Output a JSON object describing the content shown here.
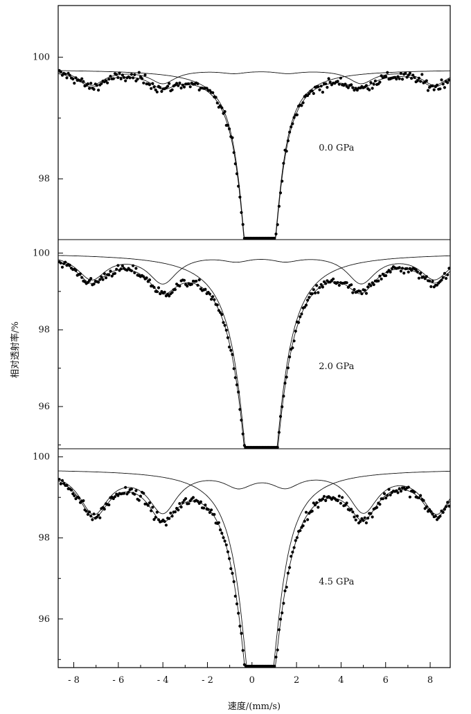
{
  "chart_data": {
    "type": "scatter",
    "xlabel": "速度/(mm/s)",
    "ylabel": "相对透射率/%",
    "xlim": [
      -8.7,
      8.9
    ],
    "x_ticks": [
      -8,
      -6,
      -4,
      -2,
      0,
      2,
      4,
      6,
      8
    ],
    "x_tick_labels": [
      "- 8",
      "- 6",
      "- 4",
      "- 2",
      "0",
      "2",
      "4",
      "6",
      "8"
    ],
    "grid": false,
    "legend": "none",
    "panels": [
      {
        "label": "0.0 GPa",
        "ylim": [
          97.0,
          100.85
        ],
        "y_ticks": [
          98,
          100
        ],
        "y_tick_labels": [
          "98",
          "100"
        ],
        "baseline": 99.8,
        "doublet": {
          "centers": [
            -0.05,
            0.8
          ],
          "depths": [
            2.95,
            2.65
          ],
          "width": 0.55
        },
        "sextet": {
          "positions": [
            -7.2,
            -4.0,
            -0.8,
            1.6,
            4.9,
            8.2
          ],
          "depths": [
            0.25,
            0.22,
            0.05,
            0.05,
            0.22,
            0.25
          ],
          "width": 0.7
        }
      },
      {
        "label": "2.0 GPa",
        "ylim": [
          94.9,
          100.35
        ],
        "y_ticks": [
          96,
          98,
          100
        ],
        "y_tick_labels": [
          "96",
          "98",
          "100"
        ],
        "baseline": 100.0,
        "doublet": {
          "centers": [
            0.15,
            0.7
          ],
          "depths": [
            4.9,
            4.3
          ],
          "width": 0.75
        },
        "sextet": {
          "positions": [
            -7.2,
            -4.0,
            -0.7,
            1.5,
            4.9,
            8.2
          ],
          "depths": [
            0.65,
            0.75,
            0.15,
            0.15,
            0.75,
            0.65
          ],
          "width": 0.8
        }
      },
      {
        "label": "4.5 GPa",
        "ylim": [
          94.8,
          100.2
        ],
        "y_ticks": [
          96,
          98,
          100
        ],
        "y_tick_labels": [
          "96",
          "98",
          "100"
        ],
        "baseline": 99.7,
        "doublet": {
          "centers": [
            0.05,
            0.7
          ],
          "depths": [
            4.1,
            3.9
          ],
          "width": 0.7
        },
        "sextet": {
          "positions": [
            -7.1,
            -4.0,
            -0.6,
            1.5,
            5.0,
            8.3
          ],
          "depths": [
            1.05,
            1.0,
            0.35,
            0.35,
            1.0,
            1.05
          ],
          "width": 0.8
        }
      }
    ]
  }
}
